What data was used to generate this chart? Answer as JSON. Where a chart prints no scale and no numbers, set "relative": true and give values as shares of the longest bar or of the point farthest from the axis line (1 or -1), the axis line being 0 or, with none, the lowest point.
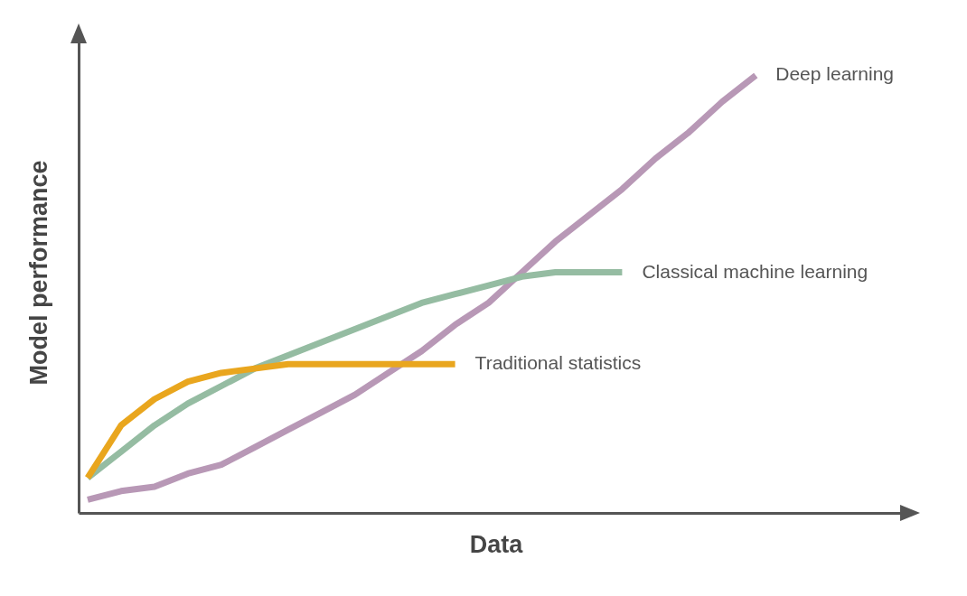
{
  "chart_data": {
    "type": "line",
    "relative": true,
    "xlabel": "Data",
    "ylabel": "Model performance",
    "legend": false,
    "grid": false,
    "marker": "none",
    "line_style": "solid",
    "categories": [
      null,
      null,
      null,
      null,
      null,
      null,
      null,
      null,
      null,
      null,
      null,
      null,
      null,
      null,
      null,
      null,
      null,
      null,
      null,
      null,
      null
    ],
    "series": [
      {
        "name": "Deep learning",
        "color": "#b898b6",
        "values": [
          0.03,
          0.05,
          0.06,
          0.09,
          0.11,
          0.15,
          0.19,
          0.23,
          0.27,
          0.32,
          0.37,
          0.43,
          0.48,
          0.55,
          0.62,
          0.68,
          0.74,
          0.81,
          0.87,
          0.94,
          1
        ]
      },
      {
        "name": "Classical machine learning",
        "color": "#95bca2",
        "values": [
          0.08,
          0.14,
          0.2,
          0.25,
          0.29,
          0.33,
          0.36,
          0.39,
          0.42,
          0.45,
          0.48,
          0.5,
          0.52,
          0.54,
          0.55,
          0.55,
          0.55,
          null,
          null,
          null,
          null
        ]
      },
      {
        "name": "Traditional statistics",
        "color": "#e9a61e",
        "values": [
          0.08,
          0.2,
          0.26,
          0.3,
          0.32,
          0.33,
          0.34,
          0.34,
          0.34,
          0.34,
          0.34,
          0.34,
          null,
          null,
          null,
          null,
          null,
          null,
          null,
          null,
          null
        ]
      }
    ]
  }
}
